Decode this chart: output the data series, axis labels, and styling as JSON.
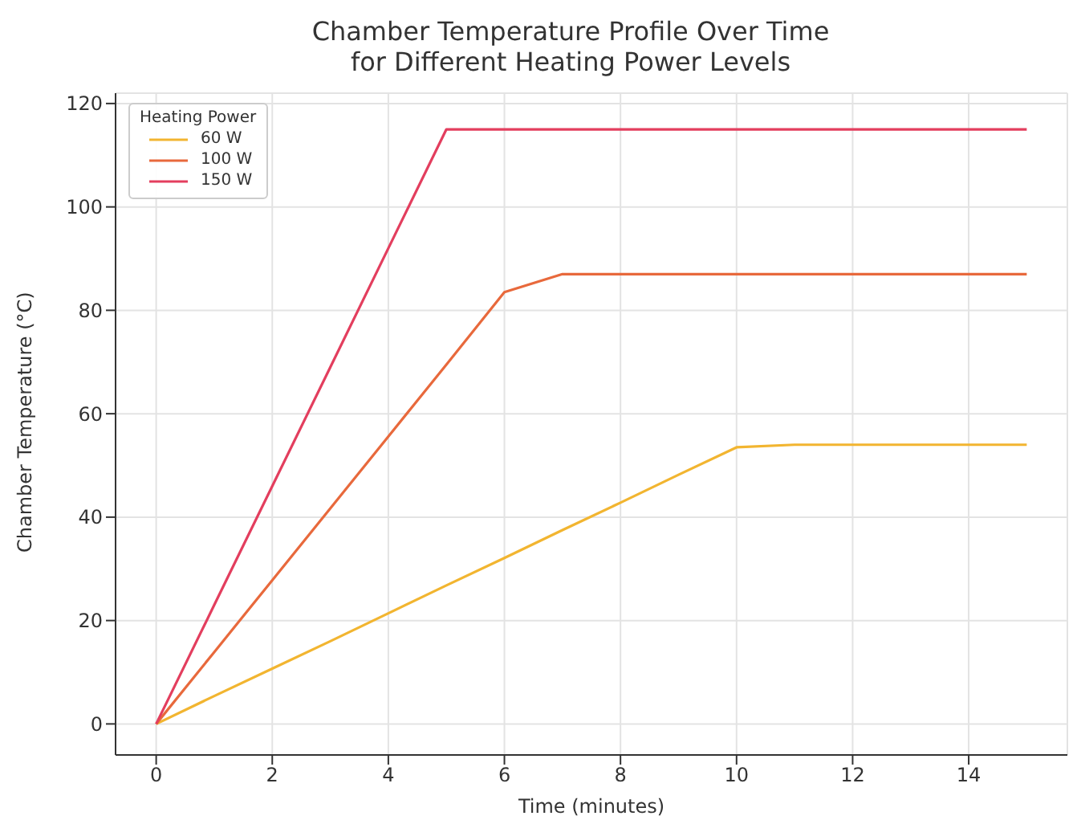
{
  "chart_data": {
    "type": "line",
    "title": "Chamber Temperature Profile Over Time\nfor Different Heating Power Levels",
    "xlabel": "Time (minutes)",
    "ylabel": "Chamber Temperature (°C)",
    "legend_title": "Heating Power",
    "x": [
      0,
      1,
      2,
      3,
      4,
      5,
      6,
      7,
      8,
      9,
      10,
      11,
      12,
      13,
      14,
      15
    ],
    "series": [
      {
        "name": "60 W",
        "color": "#f2b530",
        "values": [
          0,
          5.4,
          10.7,
          16,
          21.4,
          26.8,
          32.1,
          37.5,
          42.8,
          48.2,
          53.5,
          54,
          54,
          54,
          54,
          54
        ]
      },
      {
        "name": "100 W",
        "color": "#e8693c",
        "values": [
          0,
          13.9,
          27.8,
          41.7,
          55.6,
          69.5,
          83.5,
          87,
          87,
          87,
          87,
          87,
          87,
          87,
          87,
          87
        ]
      },
      {
        "name": "150 W",
        "color": "#e33e5e",
        "values": [
          0,
          23,
          46,
          69,
          92,
          115,
          115,
          115,
          115,
          115,
          115,
          115,
          115,
          115,
          115,
          115
        ]
      }
    ],
    "xlim": [
      -0.7,
      15.7
    ],
    "xticks": [
      0,
      2,
      4,
      6,
      8,
      10,
      12,
      14
    ],
    "ylim": [
      -6,
      122
    ],
    "yticks": [
      0,
      20,
      40,
      60,
      80,
      100,
      120
    ],
    "grid": true,
    "legend": "top left",
    "marker": "none",
    "line_style": "solid"
  }
}
